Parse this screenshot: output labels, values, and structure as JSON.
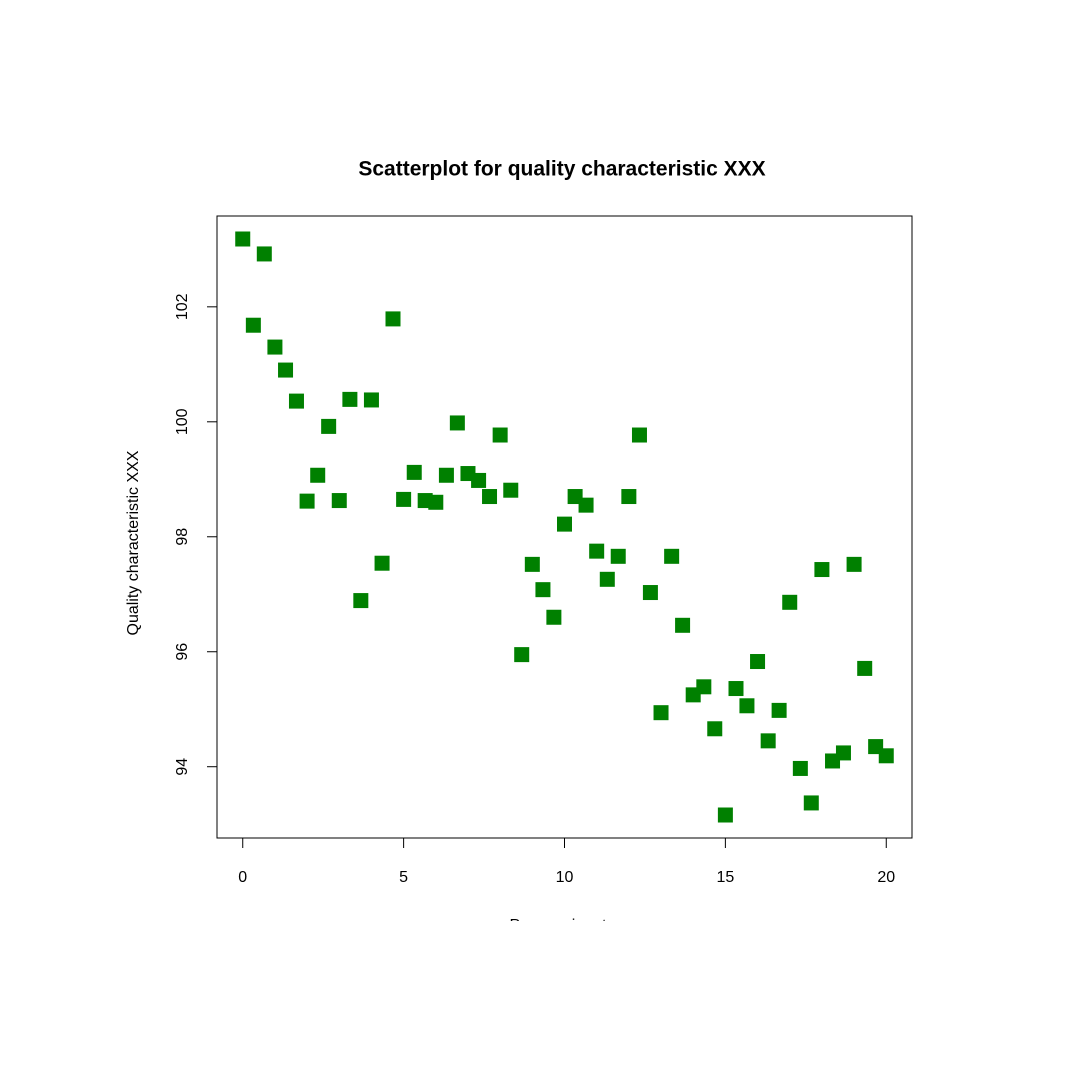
{
  "chart_data": {
    "type": "scatter",
    "title": "Scatterplot for quality characteristic XXX",
    "x_label": "Process input",
    "y_label": "Quality characteristic XXX",
    "color": "#008000",
    "x": [
      0,
      0.33,
      0.67,
      1,
      1.33,
      1.67,
      2,
      2.33,
      2.67,
      3,
      3.33,
      3.67,
      4,
      4.33,
      4.67,
      5,
      5.33,
      5.67,
      6,
      6.33,
      6.67,
      7,
      7.33,
      7.67,
      8,
      8.33,
      8.67,
      9,
      9.33,
      9.67,
      10,
      10.33,
      10.67,
      11,
      11.33,
      11.67,
      12,
      12.33,
      12.67,
      13,
      13.33,
      13.67,
      14,
      14.33,
      14.67,
      15,
      15.33,
      15.67,
      16,
      16.33,
      16.67,
      17,
      17.33,
      17.67,
      18,
      18.33,
      18.67,
      19,
      19.33,
      19.67,
      20
    ],
    "values": [
      103.18,
      101.68,
      102.92,
      101.3,
      100.9,
      100.36,
      98.62,
      99.07,
      99.92,
      98.63,
      100.39,
      96.89,
      100.38,
      97.54,
      101.79,
      98.65,
      99.12,
      98.63,
      98.6,
      99.07,
      99.98,
      99.1,
      98.98,
      98.7,
      99.77,
      98.81,
      95.95,
      97.52,
      97.08,
      96.6,
      98.22,
      98.7,
      98.55,
      97.75,
      97.26,
      97.66,
      98.7,
      99.77,
      97.03,
      94.94,
      97.66,
      96.46,
      95.25,
      95.39,
      94.66,
      93.16,
      95.36,
      95.06,
      95.83,
      94.45,
      94.98,
      96.86,
      93.97,
      93.37,
      97.43,
      94.1,
      94.24,
      97.52,
      95.71,
      94.35,
      94.19
    ],
    "xlim": [
      -0.8,
      20.8
    ],
    "ylim": [
      92.76,
      103.58
    ],
    "xticks": [
      0,
      5,
      10,
      15,
      20
    ],
    "yticks": [
      94,
      96,
      98,
      100,
      102
    ]
  }
}
